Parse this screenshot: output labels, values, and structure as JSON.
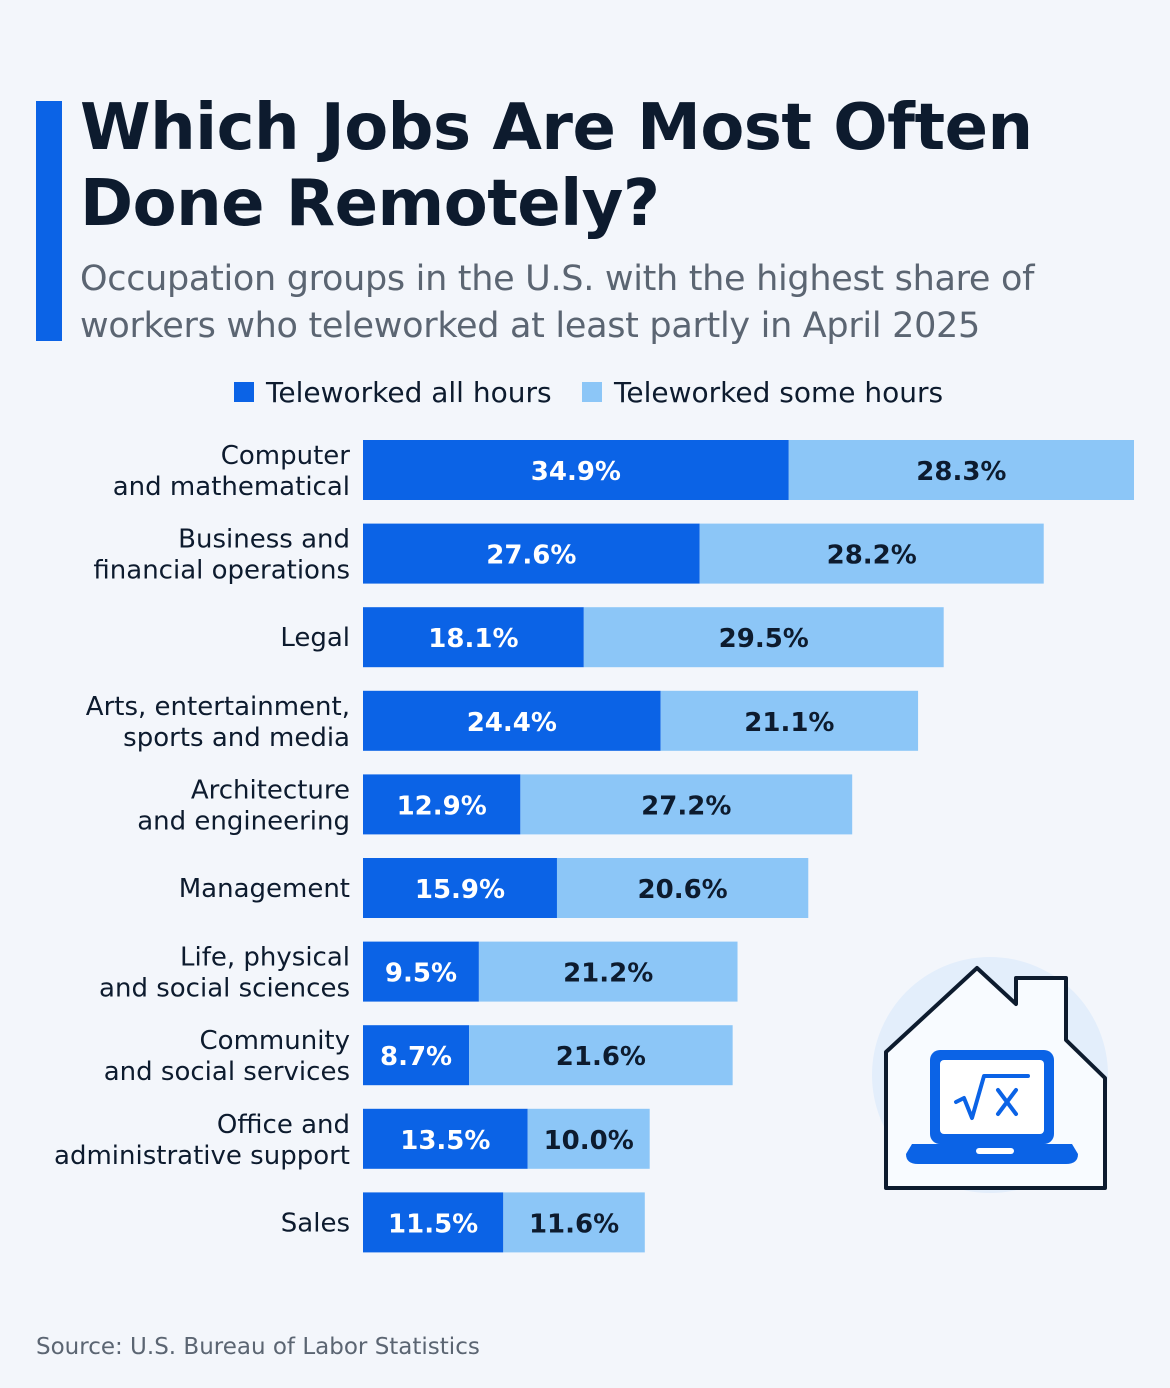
{
  "header": {
    "title": "Which Jobs Are Most Often Done Remotely?",
    "subtitle": "Occupation groups in the U.S. with the highest share of workers who teleworked at least partly in April 2025"
  },
  "legend": {
    "all_hours": "Teleworked all hours",
    "some_hours": "Teleworked some hours"
  },
  "colors": {
    "all_hours": "#0b63e6",
    "some_hours": "#8cc6f7",
    "accent": "#0b63e6",
    "label_on_dark": "#ffffff",
    "label_on_light": "#0d1b2e"
  },
  "icon": "house-laptop-icon",
  "chart_data": {
    "type": "bar",
    "orientation": "horizontal",
    "stacked": true,
    "categories": [
      [
        "Computer",
        "and mathematical"
      ],
      [
        "Business and",
        "financial operations"
      ],
      [
        "Legal"
      ],
      [
        "Arts, entertainment,",
        "sports and media"
      ],
      [
        "Architecture",
        "and engineering"
      ],
      [
        "Management"
      ],
      [
        "Life, physical",
        "and social sciences"
      ],
      [
        "Community",
        "and social services"
      ],
      [
        "Office and",
        "administrative support"
      ],
      [
        "Sales"
      ]
    ],
    "series": [
      {
        "name": "Teleworked all hours",
        "values": [
          34.9,
          27.6,
          18.1,
          24.4,
          12.9,
          15.9,
          9.5,
          8.7,
          13.5,
          11.5
        ],
        "labels": [
          "34.9%",
          "27.6%",
          "18.1%",
          "24.4%",
          "12.9%",
          "15.9%",
          "9.5%",
          "8.7%",
          "13.5%",
          "11.5%"
        ]
      },
      {
        "name": "Teleworked some hours",
        "values": [
          28.3,
          28.2,
          29.5,
          21.1,
          27.2,
          20.6,
          21.2,
          21.6,
          10.0,
          11.6
        ],
        "labels": [
          "28.3%",
          "28.2%",
          "29.5%",
          "21.1%",
          "27.2%",
          "20.6%",
          "21.2%",
          "21.6%",
          "10.0%",
          "11.6%"
        ]
      }
    ],
    "unit": "%",
    "xlim": [
      0,
      63.2
    ],
    "grid": false,
    "legend_position": "top"
  },
  "source": "Source: U.S. Bureau of Labor Statistics"
}
